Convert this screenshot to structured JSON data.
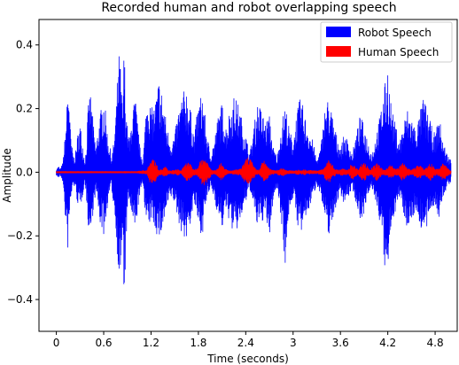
{
  "chart_data": {
    "type": "area",
    "title": "Recorded human and robot overlapping speech",
    "xlabel": "Time (seconds)",
    "ylabel": "Amplitude",
    "xlim": [
      -0.22,
      5.08
    ],
    "ylim": [
      -0.5,
      0.48
    ],
    "x_ticks": [
      0,
      0.6,
      1.2,
      1.8,
      2.4,
      3.0,
      3.6,
      4.2,
      4.8
    ],
    "x_tick_labels": [
      "0",
      "0.6",
      "1.2",
      "1.8",
      "2.4",
      "3",
      "3.6",
      "4.2",
      "4.8"
    ],
    "y_ticks": [
      -0.4,
      -0.2,
      0.0,
      0.2,
      0.4
    ],
    "y_tick_labels": [
      "−0.4",
      "−0.2",
      "0.0",
      "0.2",
      "0.4"
    ],
    "grid": false,
    "legend_position": "top-right",
    "series": [
      {
        "name": "Robot Speech",
        "color": "#0000ff",
        "envelope": {
          "t": [
            0.0,
            0.03,
            0.05,
            0.08,
            0.1,
            0.12,
            0.14,
            0.16,
            0.17,
            0.18,
            0.2,
            0.22,
            0.24,
            0.27,
            0.3,
            0.33,
            0.36,
            0.38,
            0.4,
            0.43,
            0.46,
            0.5,
            0.55,
            0.6,
            0.62,
            0.65,
            0.68,
            0.7,
            0.73,
            0.76,
            0.78,
            0.8,
            0.82,
            0.84,
            0.86,
            0.88,
            0.9,
            0.93,
            0.96,
            1.0,
            1.03,
            1.06,
            1.1,
            1.13,
            1.16,
            1.2,
            1.25,
            1.3,
            1.35,
            1.4,
            1.45,
            1.5,
            1.55,
            1.6,
            1.65,
            1.7,
            1.75,
            1.8,
            1.85,
            1.9,
            1.95,
            2.0,
            2.05,
            2.1,
            2.15,
            2.2,
            2.25,
            2.3,
            2.35,
            2.4,
            2.45,
            2.5,
            2.55,
            2.6,
            2.65,
            2.7,
            2.75,
            2.8,
            2.85,
            2.9,
            2.95,
            3.0,
            3.05,
            3.1,
            3.15,
            3.2,
            3.25,
            3.3,
            3.35,
            3.4,
            3.45,
            3.5,
            3.55,
            3.6,
            3.65,
            3.7,
            3.75,
            3.8,
            3.85,
            3.9,
            3.95,
            4.0,
            4.05,
            4.1,
            4.15,
            4.18,
            4.2,
            4.22,
            4.25,
            4.3,
            4.35,
            4.4,
            4.45,
            4.5,
            4.55,
            4.6,
            4.65,
            4.7,
            4.75,
            4.8,
            4.85,
            4.9,
            4.95,
            5.0
          ],
          "upper": [
            0.01,
            0.02,
            0.01,
            0.03,
            0.08,
            0.15,
            0.25,
            0.3,
            0.22,
            0.12,
            0.08,
            0.05,
            0.06,
            0.12,
            0.16,
            0.1,
            0.04,
            0.08,
            0.2,
            0.26,
            0.18,
            0.08,
            0.18,
            0.24,
            0.2,
            0.12,
            0.08,
            0.05,
            0.1,
            0.22,
            0.33,
            0.39,
            0.3,
            0.2,
            0.42,
            0.22,
            0.15,
            0.1,
            0.2,
            0.24,
            0.16,
            0.08,
            0.04,
            0.18,
            0.26,
            0.2,
            0.22,
            0.3,
            0.24,
            0.15,
            0.1,
            0.12,
            0.2,
            0.25,
            0.27,
            0.2,
            0.12,
            0.22,
            0.26,
            0.14,
            0.06,
            0.1,
            0.18,
            0.22,
            0.15,
            0.2,
            0.24,
            0.22,
            0.17,
            0.12,
            0.06,
            0.14,
            0.22,
            0.2,
            0.16,
            0.18,
            0.08,
            0.05,
            0.15,
            0.22,
            0.14,
            0.1,
            0.2,
            0.24,
            0.18,
            0.14,
            0.1,
            0.04,
            0.08,
            0.2,
            0.24,
            0.18,
            0.12,
            0.08,
            0.12,
            0.1,
            0.06,
            0.12,
            0.18,
            0.15,
            0.1,
            0.06,
            0.12,
            0.18,
            0.26,
            0.3,
            0.34,
            0.28,
            0.2,
            0.15,
            0.1,
            0.16,
            0.2,
            0.18,
            0.14,
            0.18,
            0.24,
            0.2,
            0.15,
            0.12,
            0.18,
            0.1,
            0.06,
            0.04
          ],
          "lower": [
            -0.01,
            -0.02,
            -0.01,
            -0.03,
            -0.1,
            -0.18,
            -0.26,
            -0.2,
            -0.14,
            -0.1,
            -0.06,
            -0.04,
            -0.06,
            -0.1,
            -0.12,
            -0.08,
            -0.03,
            -0.08,
            -0.16,
            -0.22,
            -0.14,
            -0.06,
            -0.16,
            -0.2,
            -0.18,
            -0.1,
            -0.06,
            -0.05,
            -0.12,
            -0.2,
            -0.3,
            -0.36,
            -0.3,
            -0.25,
            -0.43,
            -0.25,
            -0.13,
            -0.09,
            -0.16,
            -0.2,
            -0.12,
            -0.07,
            -0.04,
            -0.14,
            -0.2,
            -0.15,
            -0.18,
            -0.22,
            -0.18,
            -0.12,
            -0.08,
            -0.1,
            -0.16,
            -0.2,
            -0.22,
            -0.16,
            -0.1,
            -0.18,
            -0.2,
            -0.1,
            -0.05,
            -0.08,
            -0.14,
            -0.18,
            -0.12,
            -0.16,
            -0.2,
            -0.18,
            -0.14,
            -0.1,
            -0.05,
            -0.12,
            -0.18,
            -0.16,
            -0.14,
            -0.22,
            -0.08,
            -0.05,
            -0.15,
            -0.3,
            -0.12,
            -0.08,
            -0.16,
            -0.2,
            -0.16,
            -0.12,
            -0.08,
            -0.04,
            -0.07,
            -0.16,
            -0.2,
            -0.16,
            -0.1,
            -0.07,
            -0.1,
            -0.08,
            -0.05,
            -0.1,
            -0.15,
            -0.13,
            -0.08,
            -0.05,
            -0.1,
            -0.16,
            -0.28,
            -0.36,
            -0.34,
            -0.24,
            -0.16,
            -0.12,
            -0.08,
            -0.13,
            -0.18,
            -0.16,
            -0.12,
            -0.16,
            -0.2,
            -0.18,
            -0.12,
            -0.1,
            -0.16,
            -0.08,
            -0.05,
            -0.03
          ]
        }
      },
      {
        "name": "Human Speech",
        "color": "#ff0000",
        "envelope": {
          "t": [
            0.0,
            1.0,
            1.15,
            1.18,
            1.22,
            1.26,
            1.3,
            1.34,
            1.38,
            1.42,
            1.46,
            1.5,
            1.54,
            1.58,
            1.62,
            1.66,
            1.7,
            1.74,
            1.78,
            1.82,
            1.86,
            1.9,
            1.94,
            1.98,
            2.02,
            2.06,
            2.1,
            2.14,
            2.18,
            2.22,
            2.26,
            2.3,
            2.34,
            2.38,
            2.42,
            2.46,
            2.5,
            2.54,
            2.58,
            2.62,
            2.66,
            2.7,
            2.74,
            2.78,
            2.82,
            2.86,
            2.9,
            2.94,
            2.98,
            3.02,
            3.06,
            3.1,
            3.14,
            3.18,
            3.22,
            3.26,
            3.3,
            3.34,
            3.38,
            3.42,
            3.46,
            3.5,
            3.54,
            3.58,
            3.62,
            3.66,
            3.7,
            3.74,
            3.78,
            3.82,
            3.86,
            3.9,
            3.94,
            3.98,
            4.02,
            4.06,
            4.1,
            4.14,
            4.18,
            4.22,
            4.26,
            4.3,
            4.34,
            4.38,
            4.42,
            4.46,
            4.5,
            4.54,
            4.58,
            4.62,
            4.66,
            4.7,
            4.74,
            4.78,
            4.82,
            4.86,
            4.9,
            4.94,
            4.98,
            5.0
          ],
          "upper": [
            0.003,
            0.003,
            0.008,
            0.03,
            0.05,
            0.03,
            0.01,
            0.01,
            0.02,
            0.006,
            0.006,
            0.008,
            0.01,
            0.006,
            0.02,
            0.035,
            0.025,
            0.01,
            0.012,
            0.035,
            0.05,
            0.04,
            0.02,
            0.008,
            0.008,
            0.025,
            0.03,
            0.012,
            0.006,
            0.006,
            0.008,
            0.01,
            0.012,
            0.03,
            0.05,
            0.045,
            0.02,
            0.008,
            0.012,
            0.04,
            0.03,
            0.012,
            0.008,
            0.006,
            0.01,
            0.015,
            0.01,
            0.006,
            0.006,
            0.006,
            0.008,
            0.006,
            0.01,
            0.006,
            0.008,
            0.006,
            0.006,
            0.008,
            0.01,
            0.03,
            0.04,
            0.025,
            0.01,
            0.008,
            0.012,
            0.01,
            0.008,
            0.03,
            0.02,
            0.01,
            0.025,
            0.035,
            0.02,
            0.01,
            0.02,
            0.03,
            0.02,
            0.008,
            0.012,
            0.025,
            0.02,
            0.01,
            0.015,
            0.03,
            0.025,
            0.012,
            0.008,
            0.015,
            0.025,
            0.02,
            0.01,
            0.02,
            0.03,
            0.02,
            0.01,
            0.015,
            0.03,
            0.02,
            0.01,
            0.005
          ],
          "lower": [
            -0.003,
            -0.003,
            -0.008,
            -0.03,
            -0.045,
            -0.03,
            -0.01,
            -0.01,
            -0.018,
            -0.006,
            -0.006,
            -0.008,
            -0.01,
            -0.006,
            -0.02,
            -0.03,
            -0.022,
            -0.01,
            -0.012,
            -0.03,
            -0.045,
            -0.035,
            -0.02,
            -0.008,
            -0.008,
            -0.022,
            -0.028,
            -0.012,
            -0.006,
            -0.006,
            -0.008,
            -0.01,
            -0.012,
            -0.028,
            -0.045,
            -0.04,
            -0.02,
            -0.008,
            -0.012,
            -0.035,
            -0.028,
            -0.012,
            -0.008,
            -0.006,
            -0.01,
            -0.014,
            -0.01,
            -0.006,
            -0.006,
            -0.006,
            -0.008,
            -0.006,
            -0.01,
            -0.006,
            -0.008,
            -0.006,
            -0.006,
            -0.008,
            -0.01,
            -0.028,
            -0.035,
            -0.022,
            -0.01,
            -0.008,
            -0.012,
            -0.01,
            -0.008,
            -0.028,
            -0.018,
            -0.01,
            -0.022,
            -0.03,
            -0.018,
            -0.01,
            -0.018,
            -0.028,
            -0.018,
            -0.008,
            -0.012,
            -0.022,
            -0.018,
            -0.01,
            -0.014,
            -0.028,
            -0.022,
            -0.012,
            -0.008,
            -0.014,
            -0.022,
            -0.018,
            -0.01,
            -0.018,
            -0.028,
            -0.018,
            -0.01,
            -0.014,
            -0.028,
            -0.018,
            -0.01,
            -0.005
          ]
        }
      }
    ]
  }
}
